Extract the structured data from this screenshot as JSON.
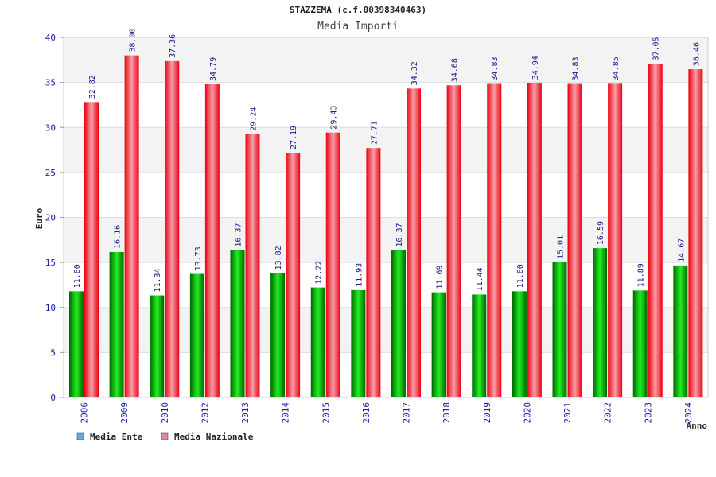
{
  "chart_data": {
    "type": "bar",
    "title": "STAZZEMA (c.f.00398340463)",
    "subtitle": "Media Importi",
    "xlabel": "Anno",
    "ylabel": "Euro",
    "ylim": [
      0,
      40
    ],
    "yticks": [
      "0",
      "5",
      "10",
      "15",
      "20",
      "25",
      "30",
      "35",
      "40"
    ],
    "categories": [
      "2006",
      "2009",
      "2010",
      "2012",
      "2013",
      "2014",
      "2015",
      "2016",
      "2017",
      "2018",
      "2019",
      "2020",
      "2021",
      "2022",
      "2023",
      "2024"
    ],
    "series": [
      {
        "name": "Media Ente",
        "color": "#00aa00",
        "legend_color": "#66aaee",
        "values": [
          11.8,
          16.16,
          11.34,
          13.73,
          16.37,
          13.82,
          12.22,
          11.93,
          16.37,
          11.69,
          11.44,
          11.8,
          15.01,
          16.59,
          11.89,
          14.67
        ],
        "labels": [
          "11.80",
          "16.16",
          "11.34",
          "13.73",
          "16.37",
          "13.82",
          "12.22",
          "11.93",
          "16.37",
          "11.69",
          "11.44",
          "11.80",
          "15.01",
          "16.59",
          "11.89",
          "14.67"
        ]
      },
      {
        "name": "Media Nazionale",
        "color": "#ee0011",
        "legend_color": "#dd88aa",
        "values": [
          32.82,
          38.0,
          37.36,
          34.79,
          29.24,
          27.19,
          29.43,
          27.71,
          34.32,
          34.68,
          34.83,
          34.94,
          34.83,
          34.85,
          37.05,
          36.46
        ],
        "labels": [
          "32.82",
          "38.00",
          "37.36",
          "34.79",
          "29.24",
          "27.19",
          "29.43",
          "27.71",
          "34.32",
          "34.68",
          "34.83",
          "34.94",
          "34.83",
          "34.85",
          "37.05",
          "36.46"
        ]
      }
    ],
    "legend_position": "bottom-left",
    "grid": true
  }
}
